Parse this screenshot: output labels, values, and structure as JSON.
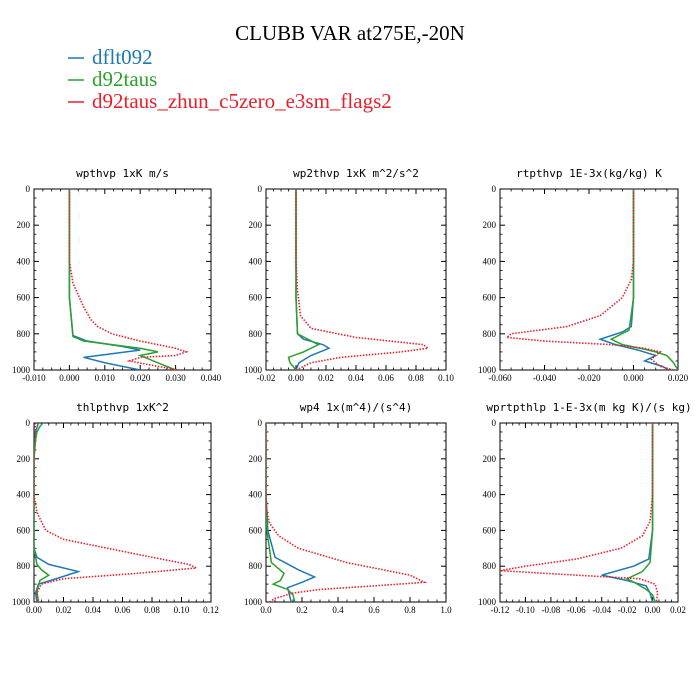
{
  "figure": {
    "title": "CLUBB VAR at275E,-20N",
    "legend": [
      {
        "name": "dflt092",
        "color": "#1f77b4",
        "style": "solid"
      },
      {
        "name": "d92taus",
        "color": "#2ca02c",
        "style": "solid"
      },
      {
        "name": "d92taus_zhun_c5zero_e3sm_flags2",
        "color": "#e8202a",
        "style": "dotted"
      }
    ]
  },
  "chart_data": [
    {
      "type": "line",
      "title": "wpthvp  1xK m/s",
      "xlim": [
        -0.01,
        0.04
      ],
      "xticks": [
        -0.01,
        0.0,
        0.01,
        0.02,
        0.03,
        0.04
      ],
      "xticklabels": [
        "-0.010",
        "0.000",
        "0.010",
        "0.020",
        "0.030",
        "0.040"
      ],
      "ylim": [
        0,
        1000
      ],
      "yticks": [
        0,
        200,
        400,
        600,
        800,
        1000
      ],
      "series": [
        {
          "name": "dflt092",
          "x": [
            0,
            0,
            0,
            0,
            0.001,
            0.005,
            0.015,
            0.02,
            0.012,
            0.004,
            0.01,
            0.02
          ],
          "y": [
            0,
            200,
            400,
            600,
            810,
            840,
            870,
            890,
            910,
            930,
            960,
            1000
          ]
        },
        {
          "name": "d92taus",
          "x": [
            0,
            0,
            0,
            0,
            0.001,
            0.004,
            0.012,
            0.02,
            0.025,
            0.02,
            0.025,
            0.03
          ],
          "y": [
            0,
            200,
            400,
            600,
            815,
            840,
            860,
            880,
            900,
            920,
            960,
            1000
          ]
        },
        {
          "name": "d92taus_zhun_c5zero_e3sm_flags2",
          "x": [
            0,
            0,
            0,
            0.001,
            0.004,
            0.006,
            0.008,
            0.012,
            0.02,
            0.03,
            0.033,
            0.03,
            0.02,
            0.017,
            0.025,
            0.031
          ],
          "y": [
            0,
            200,
            400,
            520,
            650,
            720,
            760,
            800,
            840,
            880,
            900,
            920,
            930,
            950,
            980,
            1000
          ]
        }
      ]
    },
    {
      "type": "line",
      "title": "wp2thvp  1xK m^2/s^2",
      "xlim": [
        -0.02,
        0.1
      ],
      "xticks": [
        -0.02,
        0.0,
        0.02,
        0.04,
        0.06,
        0.08,
        0.1
      ],
      "xticklabels": [
        "-0.02",
        "0.00",
        "0.02",
        "0.04",
        "0.06",
        "0.08",
        "0.10"
      ],
      "ylim": [
        0,
        1000
      ],
      "yticks": [
        0,
        200,
        400,
        600,
        800,
        1000
      ],
      "series": [
        {
          "name": "dflt092",
          "x": [
            0,
            0,
            0,
            0,
            0.001,
            0.005,
            0.018,
            0.022,
            0.01,
            0.002,
            0.0
          ],
          "y": [
            0,
            200,
            400,
            600,
            800,
            830,
            860,
            880,
            920,
            960,
            1000
          ]
        },
        {
          "name": "d92taus",
          "x": [
            0,
            0,
            0,
            0,
            0.001,
            0.008,
            0.015,
            0.005,
            -0.005,
            -0.004,
            0.0
          ],
          "y": [
            0,
            200,
            400,
            600,
            800,
            830,
            860,
            900,
            930,
            960,
            1000
          ]
        },
        {
          "name": "d92taus_zhun_c5zero_e3sm_flags2",
          "x": [
            0,
            0,
            0,
            0.001,
            0.003,
            0.01,
            0.04,
            0.085,
            0.088,
            0.07,
            0.03,
            0.01,
            0.0
          ],
          "y": [
            0,
            200,
            400,
            560,
            700,
            770,
            820,
            860,
            880,
            900,
            930,
            960,
            1000
          ]
        }
      ]
    },
    {
      "type": "line",
      "title": "rtpthvp  1E-3x(kg/kg) K",
      "xlim": [
        -0.06,
        0.02
      ],
      "xticks": [
        -0.06,
        -0.04,
        -0.02,
        0.0,
        0.02
      ],
      "xticklabels": [
        "-0.060",
        "-0.040",
        "-0.020",
        "0.000",
        "0.020"
      ],
      "ylim": [
        0,
        1000
      ],
      "yticks": [
        0,
        200,
        400,
        600,
        800,
        1000
      ],
      "series": [
        {
          "name": "dflt092",
          "x": [
            0,
            0,
            0,
            0,
            -0.001,
            -0.005,
            -0.015,
            -0.008,
            0.002,
            0.01,
            0.005,
            0.013,
            0.016
          ],
          "y": [
            0,
            200,
            400,
            600,
            760,
            790,
            830,
            860,
            890,
            920,
            950,
            980,
            1000
          ]
        },
        {
          "name": "d92taus",
          "x": [
            0,
            0,
            0,
            0,
            -0.002,
            -0.01,
            -0.005,
            0.003,
            0.01,
            0.015,
            0.018,
            0.02
          ],
          "y": [
            0,
            200,
            400,
            600,
            780,
            830,
            860,
            880,
            900,
            920,
            960,
            1000
          ]
        },
        {
          "name": "d92taus_zhun_c5zero_e3sm_flags2",
          "x": [
            0,
            0,
            0,
            -0.001,
            -0.005,
            -0.015,
            -0.03,
            -0.055,
            -0.057,
            -0.04,
            -0.01,
            0.005,
            0.012,
            0.008,
            0.012,
            0.018
          ],
          "y": [
            0,
            200,
            400,
            500,
            600,
            700,
            760,
            800,
            820,
            840,
            860,
            880,
            900,
            940,
            980,
            1000
          ]
        }
      ]
    },
    {
      "type": "line",
      "title": "thlpthvp  1xK^2",
      "xlim": [
        0,
        0.12
      ],
      "xticks": [
        0.0,
        0.02,
        0.04,
        0.06,
        0.08,
        0.1,
        0.12
      ],
      "xticklabels": [
        "0.00",
        "0.02",
        "0.04",
        "0.06",
        "0.08",
        "0.10",
        "0.12"
      ],
      "ylim": [
        0,
        1000
      ],
      "yticks": [
        0,
        200,
        400,
        600,
        800,
        1000
      ],
      "series": [
        {
          "name": "dflt092",
          "x": [
            0.003,
            0.001,
            0.0,
            0.0,
            0.0,
            0.002,
            0.01,
            0.03,
            0.015,
            0.003,
            0.001,
            0.002
          ],
          "y": [
            0,
            50,
            200,
            400,
            700,
            750,
            790,
            830,
            870,
            900,
            950,
            1000
          ]
        },
        {
          "name": "d92taus",
          "x": [
            0.006,
            0.004,
            0.002,
            0.001,
            0.0,
            0.0,
            0.002,
            0.005,
            0.01,
            0.004,
            0.002,
            0.003
          ],
          "y": [
            0,
            20,
            50,
            100,
            200,
            700,
            790,
            820,
            850,
            880,
            940,
            1000
          ]
        },
        {
          "name": "d92taus_zhun_c5zero_e3sm_flags2",
          "x": [
            0.001,
            0.0,
            0.0,
            0.002,
            0.008,
            0.02,
            0.05,
            0.08,
            0.105,
            0.11,
            0.07,
            0.02,
            0.005,
            0.002,
            0.003
          ],
          "y": [
            0,
            100,
            400,
            500,
            600,
            650,
            700,
            750,
            790,
            810,
            840,
            870,
            900,
            950,
            1000
          ]
        }
      ]
    },
    {
      "type": "line",
      "title": "wp4  1x(m^4)/(s^4)",
      "xlim": [
        0,
        1.0
      ],
      "xticks": [
        0.0,
        0.2,
        0.4,
        0.6,
        0.8,
        1.0
      ],
      "xticklabels": [
        "0.0",
        "0.2",
        "0.4",
        "0.6",
        "0.8",
        "1.0"
      ],
      "ylim": [
        0,
        1000
      ],
      "yticks": [
        0,
        200,
        400,
        600,
        800,
        1000
      ],
      "series": [
        {
          "name": "dflt092",
          "x": [
            0,
            0,
            0,
            0.01,
            0.05,
            0.18,
            0.27,
            0.2,
            0.12,
            0.13,
            0.14
          ],
          "y": [
            0,
            200,
            400,
            600,
            750,
            820,
            860,
            890,
            920,
            960,
            1000
          ]
        },
        {
          "name": "d92taus",
          "x": [
            0,
            0,
            0,
            0.005,
            0.03,
            0.1,
            0.08,
            0.04,
            0.12,
            0.15,
            0.16
          ],
          "y": [
            0,
            200,
            400,
            600,
            780,
            840,
            880,
            900,
            930,
            960,
            1000
          ]
        },
        {
          "name": "d92taus_zhun_c5zero_e3sm_flags2",
          "x": [
            0,
            0,
            0.005,
            0.02,
            0.07,
            0.18,
            0.45,
            0.8,
            0.88,
            0.6,
            0.3,
            0.15,
            0.05,
            0.02
          ],
          "y": [
            0,
            400,
            500,
            560,
            630,
            700,
            780,
            850,
            890,
            910,
            930,
            950,
            980,
            1000
          ]
        }
      ]
    },
    {
      "type": "line",
      "title": "wprtpthlp  1-E-3x(m kg K)/(s kg)",
      "xlim": [
        -0.12,
        0.02
      ],
      "xticks": [
        -0.12,
        -0.1,
        -0.08,
        -0.06,
        -0.04,
        -0.02,
        0.0,
        0.02
      ],
      "xticklabels": [
        "-0.12",
        "-0.10",
        "-0.08",
        "-0.06",
        "-0.04",
        "-0.02",
        "0.00",
        "0.02"
      ],
      "ylim": [
        0,
        1000
      ],
      "yticks": [
        0,
        200,
        400,
        600,
        800,
        1000
      ],
      "series": [
        {
          "name": "dflt092",
          "x": [
            0,
            0,
            0,
            0,
            -0.003,
            -0.015,
            -0.04,
            -0.02,
            -0.005,
            -0.002,
            0.0
          ],
          "y": [
            0,
            200,
            400,
            600,
            760,
            800,
            850,
            880,
            910,
            950,
            1000
          ]
        },
        {
          "name": "d92taus",
          "x": [
            0,
            0,
            0,
            0,
            -0.002,
            -0.008,
            -0.02,
            -0.012,
            -0.005,
            0.0,
            0.002
          ],
          "y": [
            0,
            200,
            400,
            600,
            780,
            830,
            870,
            900,
            930,
            960,
            1000
          ]
        },
        {
          "name": "d92taus_zhun_c5zero_e3sm_flags2",
          "x": [
            0,
            0,
            0,
            -0.002,
            -0.008,
            -0.025,
            -0.06,
            -0.1,
            -0.12,
            -0.06,
            -0.01,
            0.002,
            0.004,
            0.003
          ],
          "y": [
            0,
            200,
            400,
            550,
            630,
            700,
            760,
            800,
            825,
            850,
            870,
            900,
            950,
            1000
          ]
        }
      ]
    }
  ]
}
